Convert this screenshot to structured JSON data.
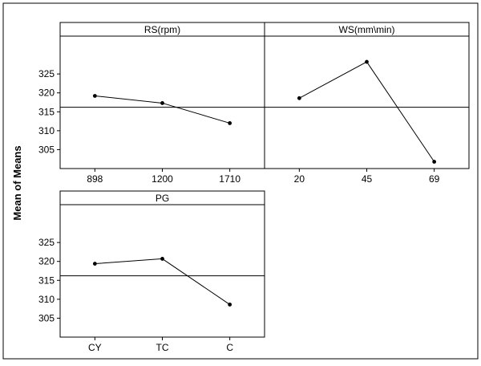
{
  "figure": {
    "ylabel": "Mean of Means"
  },
  "chart_data": [
    {
      "type": "line",
      "title": "RS(rpm)",
      "categories": [
        "898",
        "1200",
        "1710"
      ],
      "values": [
        319.2,
        317.3,
        312.0
      ],
      "reference_mean": 316.2,
      "ylim": [
        300,
        335
      ],
      "yticks": [
        305,
        310,
        315,
        320,
        325
      ],
      "ylabel": "Mean of Means"
    },
    {
      "type": "line",
      "title": "WS(mm\\min)",
      "categories": [
        "20",
        "45",
        "69"
      ],
      "values": [
        318.6,
        328.2,
        301.8
      ],
      "reference_mean": 316.2,
      "ylim": [
        300,
        335
      ],
      "yticks": [
        305,
        310,
        315,
        320,
        325
      ],
      "ylabel": "Mean of Means"
    },
    {
      "type": "line",
      "title": "PG",
      "categories": [
        "CY",
        "TC",
        "C"
      ],
      "values": [
        319.4,
        320.7,
        308.6
      ],
      "reference_mean": 316.2,
      "ylim": [
        300,
        335
      ],
      "yticks": [
        305,
        310,
        315,
        320,
        325
      ],
      "ylabel": "Mean of Means"
    }
  ]
}
